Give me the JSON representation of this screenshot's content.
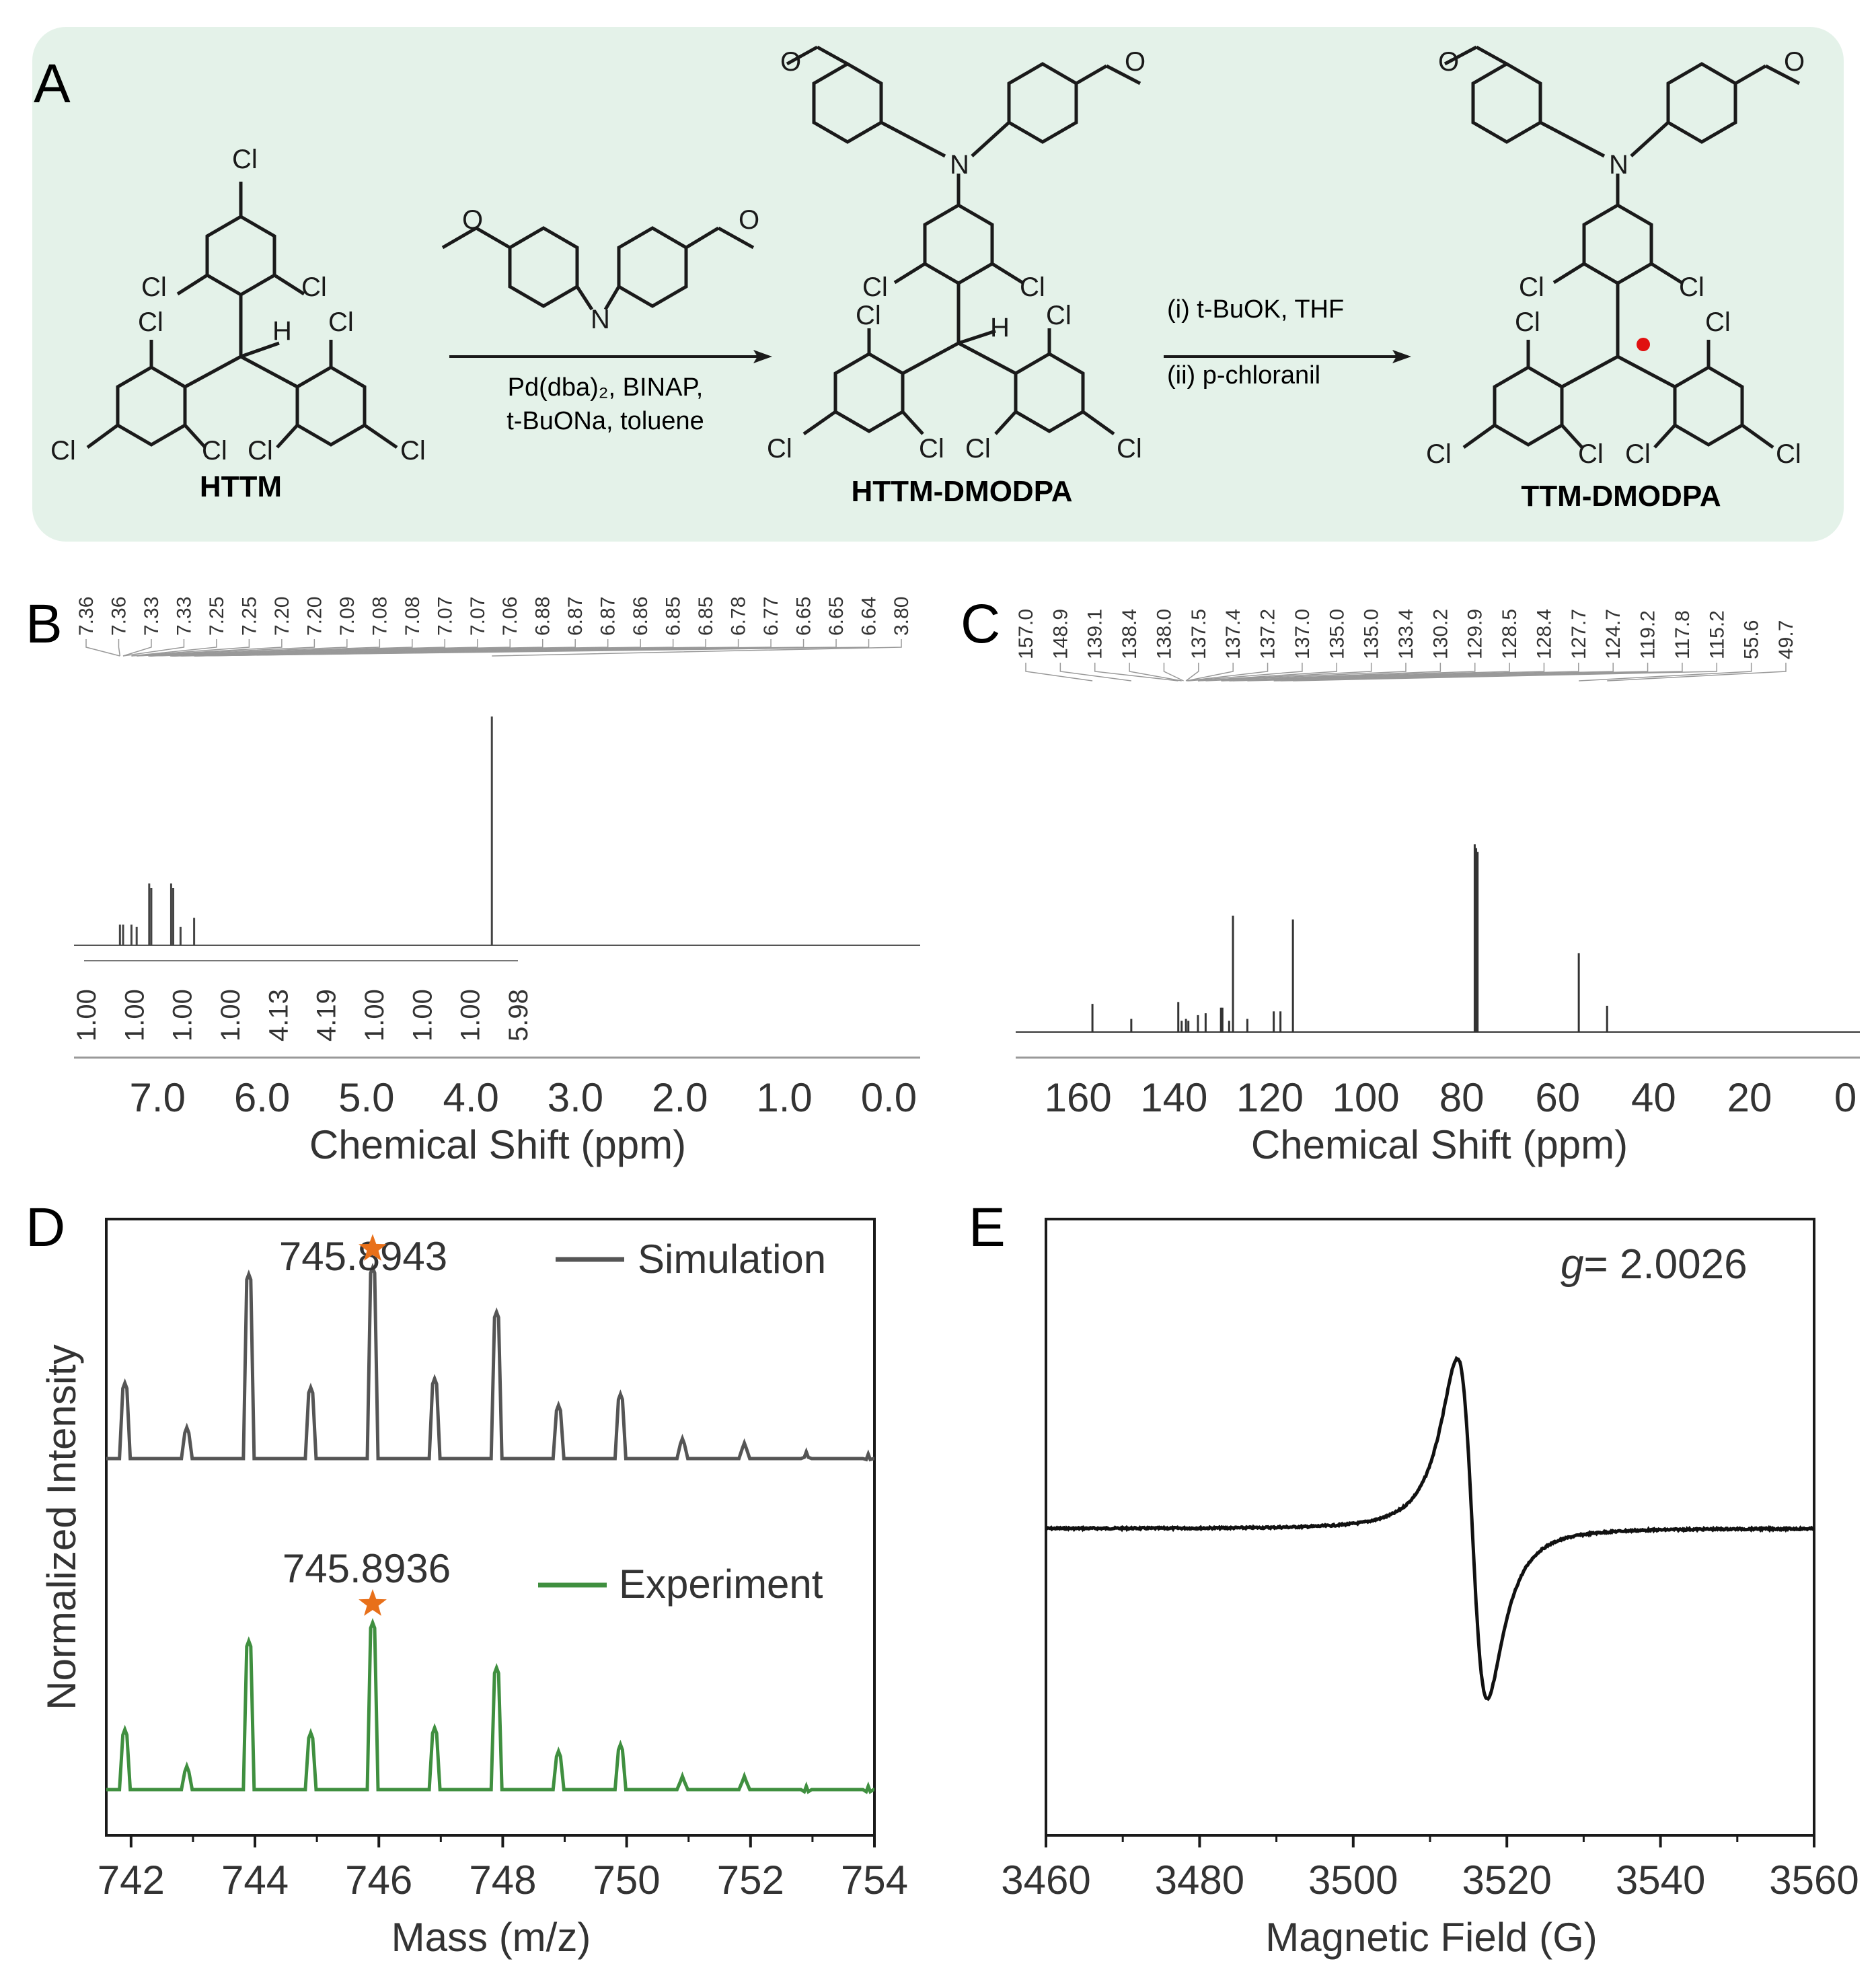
{
  "panel_labels": [
    "A",
    "B",
    "C",
    "D",
    "E"
  ],
  "colors": {
    "scheme_bg": "#e4f2e9",
    "black": "#1a1a1a",
    "gray_trace": "#555555",
    "green_trace": "#3f8f3f",
    "star": "#e8701a",
    "radical_dot": "#e01010"
  },
  "scheme": {
    "compounds": [
      "HTTM",
      "HTTM-DMODPA",
      "TTM-DMODPA"
    ],
    "step1": {
      "line1": "Pd(dba)₂, BINAP,",
      "line2": "t-BuONa, toluene"
    },
    "step2": {
      "line1": "(i) t-BuOK, THF",
      "line2": "(ii) p-chloranil"
    },
    "atoms": {
      "cl": "Cl",
      "h": "H",
      "n": "N",
      "o": "O"
    }
  },
  "chart_data": [
    {
      "panel": "B",
      "type": "line",
      "title": "",
      "xlabel": "Chemical Shift (ppm)",
      "ylabel": "",
      "xlim": [
        7.8,
        -0.3
      ],
      "x_ticks": [
        "7.0",
        "6.0",
        "5.0",
        "4.0",
        "3.0",
        "2.0",
        "1.0",
        "0.0"
      ],
      "peak_labels": [
        "7.36",
        "7.36",
        "7.33",
        "7.33",
        "7.25",
        "7.25",
        "7.20",
        "7.20",
        "7.09",
        "7.08",
        "7.08",
        "7.07",
        "7.07",
        "7.06",
        "6.88",
        "6.87",
        "6.87",
        "6.86",
        "6.85",
        "6.85",
        "6.78",
        "6.77",
        "6.65",
        "6.65",
        "6.64",
        "3.80"
      ],
      "integrals": [
        "1.00",
        "1.00",
        "1.00",
        "1.00",
        "4.13",
        "4.19",
        "1.00",
        "1.00",
        "1.00",
        "5.98"
      ],
      "peaks": [
        {
          "x": 7.36,
          "y": 0.09
        },
        {
          "x": 7.33,
          "y": 0.09
        },
        {
          "x": 7.25,
          "y": 0.09
        },
        {
          "x": 7.2,
          "y": 0.08
        },
        {
          "x": 7.08,
          "y": 0.27
        },
        {
          "x": 7.06,
          "y": 0.25
        },
        {
          "x": 6.87,
          "y": 0.27
        },
        {
          "x": 6.85,
          "y": 0.25
        },
        {
          "x": 6.78,
          "y": 0.08
        },
        {
          "x": 6.65,
          "y": 0.12
        },
        {
          "x": 3.8,
          "y": 1.0
        }
      ]
    },
    {
      "panel": "C",
      "type": "line",
      "title": "",
      "xlabel": "Chemical Shift (ppm)",
      "ylabel": "",
      "xlim": [
        173,
        -3
      ],
      "x_ticks": [
        "160",
        "140",
        "120",
        "100",
        "80",
        "60",
        "40",
        "20",
        "0"
      ],
      "peak_labels": [
        "157.0",
        "148.9",
        "139.1",
        "138.4",
        "138.0",
        "137.5",
        "137.4",
        "137.2",
        "137.0",
        "135.0",
        "135.0",
        "133.4",
        "130.2",
        "129.9",
        "128.5",
        "128.4",
        "127.7",
        "124.7",
        "119.2",
        "117.8",
        "115.2",
        "55.6",
        "49.7"
      ],
      "peaks": [
        {
          "x": 157.0,
          "y": 0.15
        },
        {
          "x": 148.9,
          "y": 0.07
        },
        {
          "x": 139.1,
          "y": 0.16
        },
        {
          "x": 138.4,
          "y": 0.06
        },
        {
          "x": 137.5,
          "y": 0.07
        },
        {
          "x": 137.0,
          "y": 0.06
        },
        {
          "x": 135.0,
          "y": 0.09
        },
        {
          "x": 133.4,
          "y": 0.1
        },
        {
          "x": 130.2,
          "y": 0.13
        },
        {
          "x": 129.9,
          "y": 0.13
        },
        {
          "x": 128.5,
          "y": 0.06
        },
        {
          "x": 127.7,
          "y": 0.62
        },
        {
          "x": 124.7,
          "y": 0.07
        },
        {
          "x": 119.2,
          "y": 0.11
        },
        {
          "x": 117.8,
          "y": 0.11
        },
        {
          "x": 115.2,
          "y": 0.6
        },
        {
          "x": 77.3,
          "y": 1.0
        },
        {
          "x": 77.0,
          "y": 0.98
        },
        {
          "x": 76.7,
          "y": 0.96
        },
        {
          "x": 55.6,
          "y": 0.42
        },
        {
          "x": 49.7,
          "y": 0.14
        }
      ]
    },
    {
      "panel": "D",
      "type": "line",
      "title": "",
      "xlabel": "Mass (m/z)",
      "ylabel": "Normalized Intensity",
      "xlim": [
        741.6,
        754
      ],
      "x_ticks": [
        "742",
        "744",
        "746",
        "748",
        "750",
        "752",
        "754"
      ],
      "series": [
        {
          "name": "Simulation",
          "annotation": "745.8943",
          "x": [
            741.9,
            742.9,
            743.9,
            744.9,
            745.9,
            746.9,
            747.9,
            748.9,
            749.9,
            750.9,
            751.9,
            752.9,
            753.9
          ],
          "values": [
            0.34,
            0.14,
            0.83,
            0.32,
            0.86,
            0.36,
            0.66,
            0.24,
            0.29,
            0.09,
            0.07,
            0.03,
            0.02
          ]
        },
        {
          "name": "Experiment",
          "annotation": "745.8936",
          "x": [
            741.9,
            742.9,
            743.9,
            744.9,
            745.9,
            746.9,
            747.9,
            748.9,
            749.9,
            750.9,
            751.9,
            752.9,
            753.9
          ],
          "values": [
            0.36,
            0.14,
            0.89,
            0.34,
            1.0,
            0.37,
            0.73,
            0.23,
            0.27,
            0.08,
            0.08,
            0.02,
            0.02
          ]
        }
      ]
    },
    {
      "panel": "E",
      "type": "line",
      "title": "",
      "xlabel": "Magnetic Field (G)",
      "ylabel": "",
      "xlim": [
        3460,
        3560
      ],
      "x_ticks": [
        "3460",
        "3480",
        "3500",
        "3520",
        "3540",
        "3560"
      ],
      "annotation_prefix": "g",
      "annotation_value": "= 2.0026",
      "center_field": 3515.5,
      "peak_to_peak_width": 3.9
    }
  ]
}
